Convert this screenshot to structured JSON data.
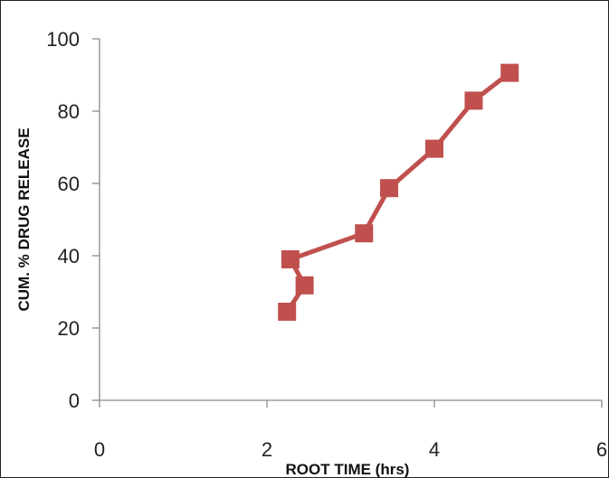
{
  "chart_data": {
    "type": "line",
    "title": "",
    "xlabel": "ROOT TIME (hrs)",
    "ylabel": "CUM. % DRUG RELEASE",
    "xlim": [
      0,
      6
    ],
    "ylim": [
      0,
      100
    ],
    "x_ticks": [
      0,
      2,
      4,
      6
    ],
    "y_ticks": [
      0,
      20,
      40,
      60,
      80,
      100
    ],
    "x_tick_labels": [
      "0",
      "2",
      "4",
      "6"
    ],
    "y_tick_labels": [
      "0",
      "20",
      "40",
      "60",
      "80",
      "100"
    ],
    "grid": false,
    "legend": "none",
    "series": [
      {
        "color": "#C0504D",
        "marker": "square",
        "points": [
          {
            "x": 2.24,
            "y": 24.5
          },
          {
            "x": 2.45,
            "y": 31.8
          },
          {
            "x": 2.28,
            "y": 39.0
          },
          {
            "x": 3.16,
            "y": 46.2
          },
          {
            "x": 3.46,
            "y": 58.7
          },
          {
            "x": 4.0,
            "y": 69.6
          },
          {
            "x": 4.47,
            "y": 82.9
          },
          {
            "x": 4.9,
            "y": 90.6
          }
        ]
      }
    ]
  }
}
